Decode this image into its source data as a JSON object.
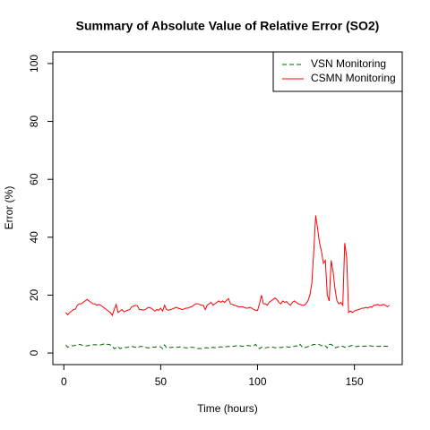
{
  "chart_data": {
    "type": "line",
    "title": "Summary of Absolute Value of Relative Error (SO2)",
    "x_label": "Time (hours)",
    "y_label": "Error (%)",
    "x": [
      1,
      2,
      3,
      4,
      5,
      6,
      7,
      8,
      9,
      10,
      11,
      12,
      13,
      14,
      15,
      16,
      17,
      18,
      19,
      20,
      21,
      22,
      23,
      24,
      25,
      26,
      27,
      28,
      29,
      30,
      31,
      32,
      33,
      34,
      35,
      36,
      37,
      38,
      39,
      40,
      41,
      42,
      43,
      44,
      45,
      46,
      47,
      48,
      49,
      50,
      51,
      52,
      53,
      54,
      55,
      56,
      57,
      58,
      59,
      60,
      61,
      62,
      63,
      64,
      65,
      66,
      67,
      68,
      69,
      70,
      71,
      72,
      73,
      74,
      75,
      76,
      77,
      78,
      79,
      80,
      81,
      82,
      83,
      84,
      85,
      86,
      87,
      88,
      89,
      90,
      91,
      92,
      93,
      94,
      95,
      96,
      97,
      98,
      99,
      100,
      101,
      102,
      103,
      104,
      105,
      106,
      107,
      108,
      109,
      110,
      111,
      112,
      113,
      114,
      115,
      116,
      117,
      118,
      119,
      120,
      121,
      122,
      123,
      124,
      125,
      126,
      127,
      128,
      129,
      130,
      131,
      132,
      133,
      134,
      135,
      136,
      137,
      138,
      139,
      140,
      141,
      142,
      143,
      144,
      145,
      146,
      147,
      148,
      149,
      150,
      151,
      152,
      153,
      154,
      155,
      156,
      157,
      158,
      159,
      160,
      161,
      162,
      163,
      164,
      165,
      166,
      167,
      168
    ],
    "series": [
      {
        "name": "VSN Monitoring",
        "color": "#006400",
        "dash": true,
        "values": [
          2.8,
          2,
          2.3,
          2.5,
          2.5,
          2.7,
          2.8,
          3,
          2.8,
          2.6,
          2.5,
          2.5,
          2.6,
          2.7,
          2.8,
          2.9,
          2.8,
          2.7,
          2.8,
          3,
          3.2,
          3,
          3,
          2.8,
          2.5,
          1.5,
          1.8,
          2.2,
          1.5,
          1.8,
          2,
          1.9,
          2,
          2.2,
          2.3,
          2.1,
          2,
          1.8,
          2.2,
          2.3,
          2.2,
          2,
          1.8,
          1.8,
          2,
          2.1,
          2,
          2.2,
          2.3,
          2.1,
          1.5,
          2.8,
          1.8,
          2,
          1.9,
          2,
          2,
          2,
          2,
          2.1,
          2,
          1.9,
          1.8,
          1.8,
          2,
          2,
          1.9,
          1.8,
          1.5,
          1.6,
          1.5,
          1.6,
          1.8,
          1.8,
          1.7,
          1.8,
          2,
          1.8,
          1.9,
          2,
          2.2,
          2,
          2.1,
          2.2,
          2.3,
          2.2,
          2.3,
          2.4,
          2.5,
          2.5,
          2.5,
          2.3,
          2.4,
          2.5,
          2.6,
          2.5,
          2.4,
          2.5,
          3,
          2,
          1.5,
          2,
          2,
          1.8,
          1.9,
          2,
          2.1,
          2,
          1.8,
          1.9,
          2,
          1.9,
          2,
          2.1,
          2.2,
          2,
          2.1,
          2.2,
          2.3,
          2.5,
          2.2,
          3,
          2.1,
          1.8,
          2,
          2.2,
          2.5,
          2.7,
          3,
          2.9,
          3,
          2.9,
          2.5,
          2.8,
          2.5,
          1.8,
          3,
          3,
          2.5,
          1.8,
          2,
          2.2,
          2.5,
          2.3,
          2,
          1.9,
          2.2,
          2.5,
          2.6,
          2.3,
          2.2,
          2.4,
          2.3,
          2.3,
          2.4,
          2.4,
          2.4,
          2.5,
          2.4,
          2.4,
          2.4,
          2.3,
          2.3,
          2.4,
          2.3,
          2.4,
          2.3,
          2.3
        ]
      },
      {
        "name": "CSMN Monitoring",
        "color": "#ff0000",
        "dash": false,
        "values": [
          14,
          13.2,
          14,
          14.5,
          15,
          15.2,
          16.5,
          17,
          17,
          17.5,
          18,
          18.5,
          18,
          17.5,
          17,
          17,
          16.5,
          16.8,
          16.5,
          16,
          15.5,
          15,
          14.5,
          14,
          13,
          15,
          16.8,
          14,
          14.5,
          15,
          14.2,
          14.5,
          14.8,
          15,
          16,
          16.2,
          16.5,
          16.3,
          15,
          15,
          14.8,
          15,
          15.5,
          15.8,
          15.5,
          15,
          14.5,
          15,
          14.8,
          15.5,
          14.5,
          16.5,
          15,
          14.8,
          15,
          15.2,
          15.5,
          15.8,
          15.5,
          15.3,
          15,
          15.2,
          15.5,
          15.5,
          15.8,
          16,
          16.5,
          17,
          17,
          16.8,
          16.5,
          16.5,
          15,
          16.5,
          17,
          17.5,
          16.5,
          17,
          17.5,
          18,
          17.5,
          18,
          17.5,
          18.2,
          18.8,
          17,
          16.8,
          16.5,
          16.3,
          16,
          16,
          16,
          15.8,
          15.5,
          15.5,
          15.8,
          15.5,
          15,
          14.8,
          14.7,
          17,
          20,
          17,
          17,
          16.5,
          17.5,
          18,
          18.5,
          19,
          18.5,
          17.5,
          17,
          18,
          17.5,
          17.8,
          17,
          16.5,
          17.5,
          18,
          17.5,
          17,
          16.8,
          16.5,
          16.5,
          17,
          18,
          20,
          24,
          35,
          47.5,
          43,
          38,
          35,
          31,
          32,
          20,
          18,
          32,
          28,
          22,
          18,
          17,
          17.5,
          16.5,
          38,
          33,
          14,
          14.5,
          14,
          14.5,
          14.8,
          15,
          15.2,
          15.5,
          15.5,
          15.8,
          15.5,
          16,
          15.8,
          16.5,
          16.5,
          16.8,
          16.5,
          16.5,
          16.8,
          16.5,
          16,
          16.5
        ]
      }
    ],
    "xlim": [
      -5.68,
      174.68
    ],
    "xticks": [
      0,
      50,
      100,
      150
    ],
    "ylim": [
      -4,
      104
    ],
    "yticks": [
      0,
      20,
      40,
      60,
      80,
      100
    ],
    "legend": "top-right"
  }
}
